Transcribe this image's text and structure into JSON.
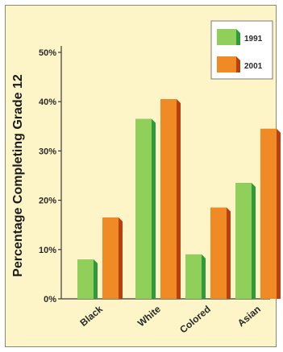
{
  "chart_data": {
    "type": "bar",
    "categories": [
      "Black",
      "White",
      "Colored",
      "Asian"
    ],
    "series": [
      {
        "name": "1991",
        "values": [
          8,
          36.5,
          9,
          23.5
        ],
        "color": "#8fcf5a",
        "side_color": "#2f9a3a"
      },
      {
        "name": "2001",
        "values": [
          16.5,
          40.5,
          18.5,
          34.5
        ],
        "color": "#f08a24",
        "side_color": "#b9410f"
      }
    ],
    "ylabel": "Percentage Completing Grade 12",
    "ylim": [
      0,
      50
    ],
    "yticks": [
      0,
      10,
      20,
      30,
      40,
      50
    ],
    "ytick_labels": [
      "0%",
      "10%",
      "20%",
      "30%",
      "40%",
      "50%"
    ],
    "grid": false,
    "legend_position": "top-right",
    "colors": {
      "background": "#fdf5c7",
      "axis": "#3a3a3a"
    }
  }
}
